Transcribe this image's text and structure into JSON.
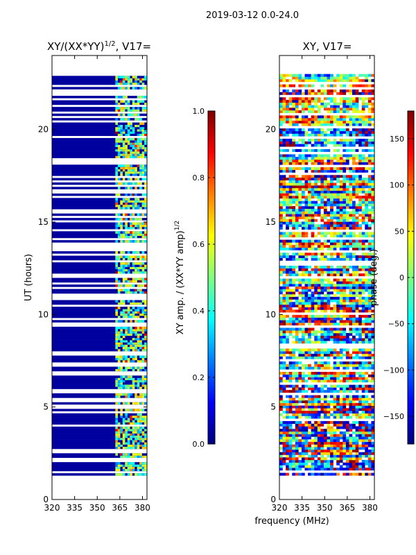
{
  "suptitle": "2019-03-12 0.0-24.0",
  "shared_xlabel": "frequency (MHz)",
  "colormap": [
    "#00007f",
    "#0000ff",
    "#007fff",
    "#00ffff",
    "#7fff7f",
    "#ffff00",
    "#ff7f00",
    "#ff0000",
    "#7f0000"
  ],
  "chart_data": [
    {
      "type": "heatmap",
      "title_main": "XY/(XX*YY)",
      "title_sup": "1/2",
      "title_rest": ", V17=",
      "xlabel": "",
      "ylabel": "UT (hours)",
      "xlim": [
        320,
        383
      ],
      "ylim": [
        0,
        24
      ],
      "x_ticks": [
        320,
        335,
        350,
        365,
        380
      ],
      "y_ticks": [
        0,
        5,
        10,
        15,
        20
      ],
      "data_y_range": [
        1.3,
        23.0
      ],
      "active_freq_range": [
        362,
        383
      ],
      "colorbar": {
        "label_main": "XY amp. / (XX*YY amp)",
        "label_sup": "1/2",
        "range": [
          0.0,
          1.0
        ],
        "ticks": [
          "0.0",
          "0.2",
          "0.4",
          "0.6",
          "0.8",
          "1.0"
        ]
      }
    },
    {
      "type": "heatmap",
      "title_main": "XY, V17=",
      "title_sup": "",
      "title_rest": "",
      "xlabel": "",
      "ylabel": "",
      "xlim": [
        320,
        383
      ],
      "ylim": [
        0,
        24
      ],
      "x_ticks": [
        320,
        335,
        350,
        365,
        380
      ],
      "y_ticks": [
        0,
        5,
        10,
        15,
        20
      ],
      "data_y_range": [
        1.3,
        23.0
      ],
      "active_freq_range": [
        320,
        383
      ],
      "colorbar": {
        "label_main": "phase (deg.)",
        "label_sup": "",
        "range": [
          -180,
          180
        ],
        "ticks": [
          "−150",
          "−100",
          "−50",
          "0",
          "50",
          "100",
          "150"
        ]
      }
    }
  ]
}
